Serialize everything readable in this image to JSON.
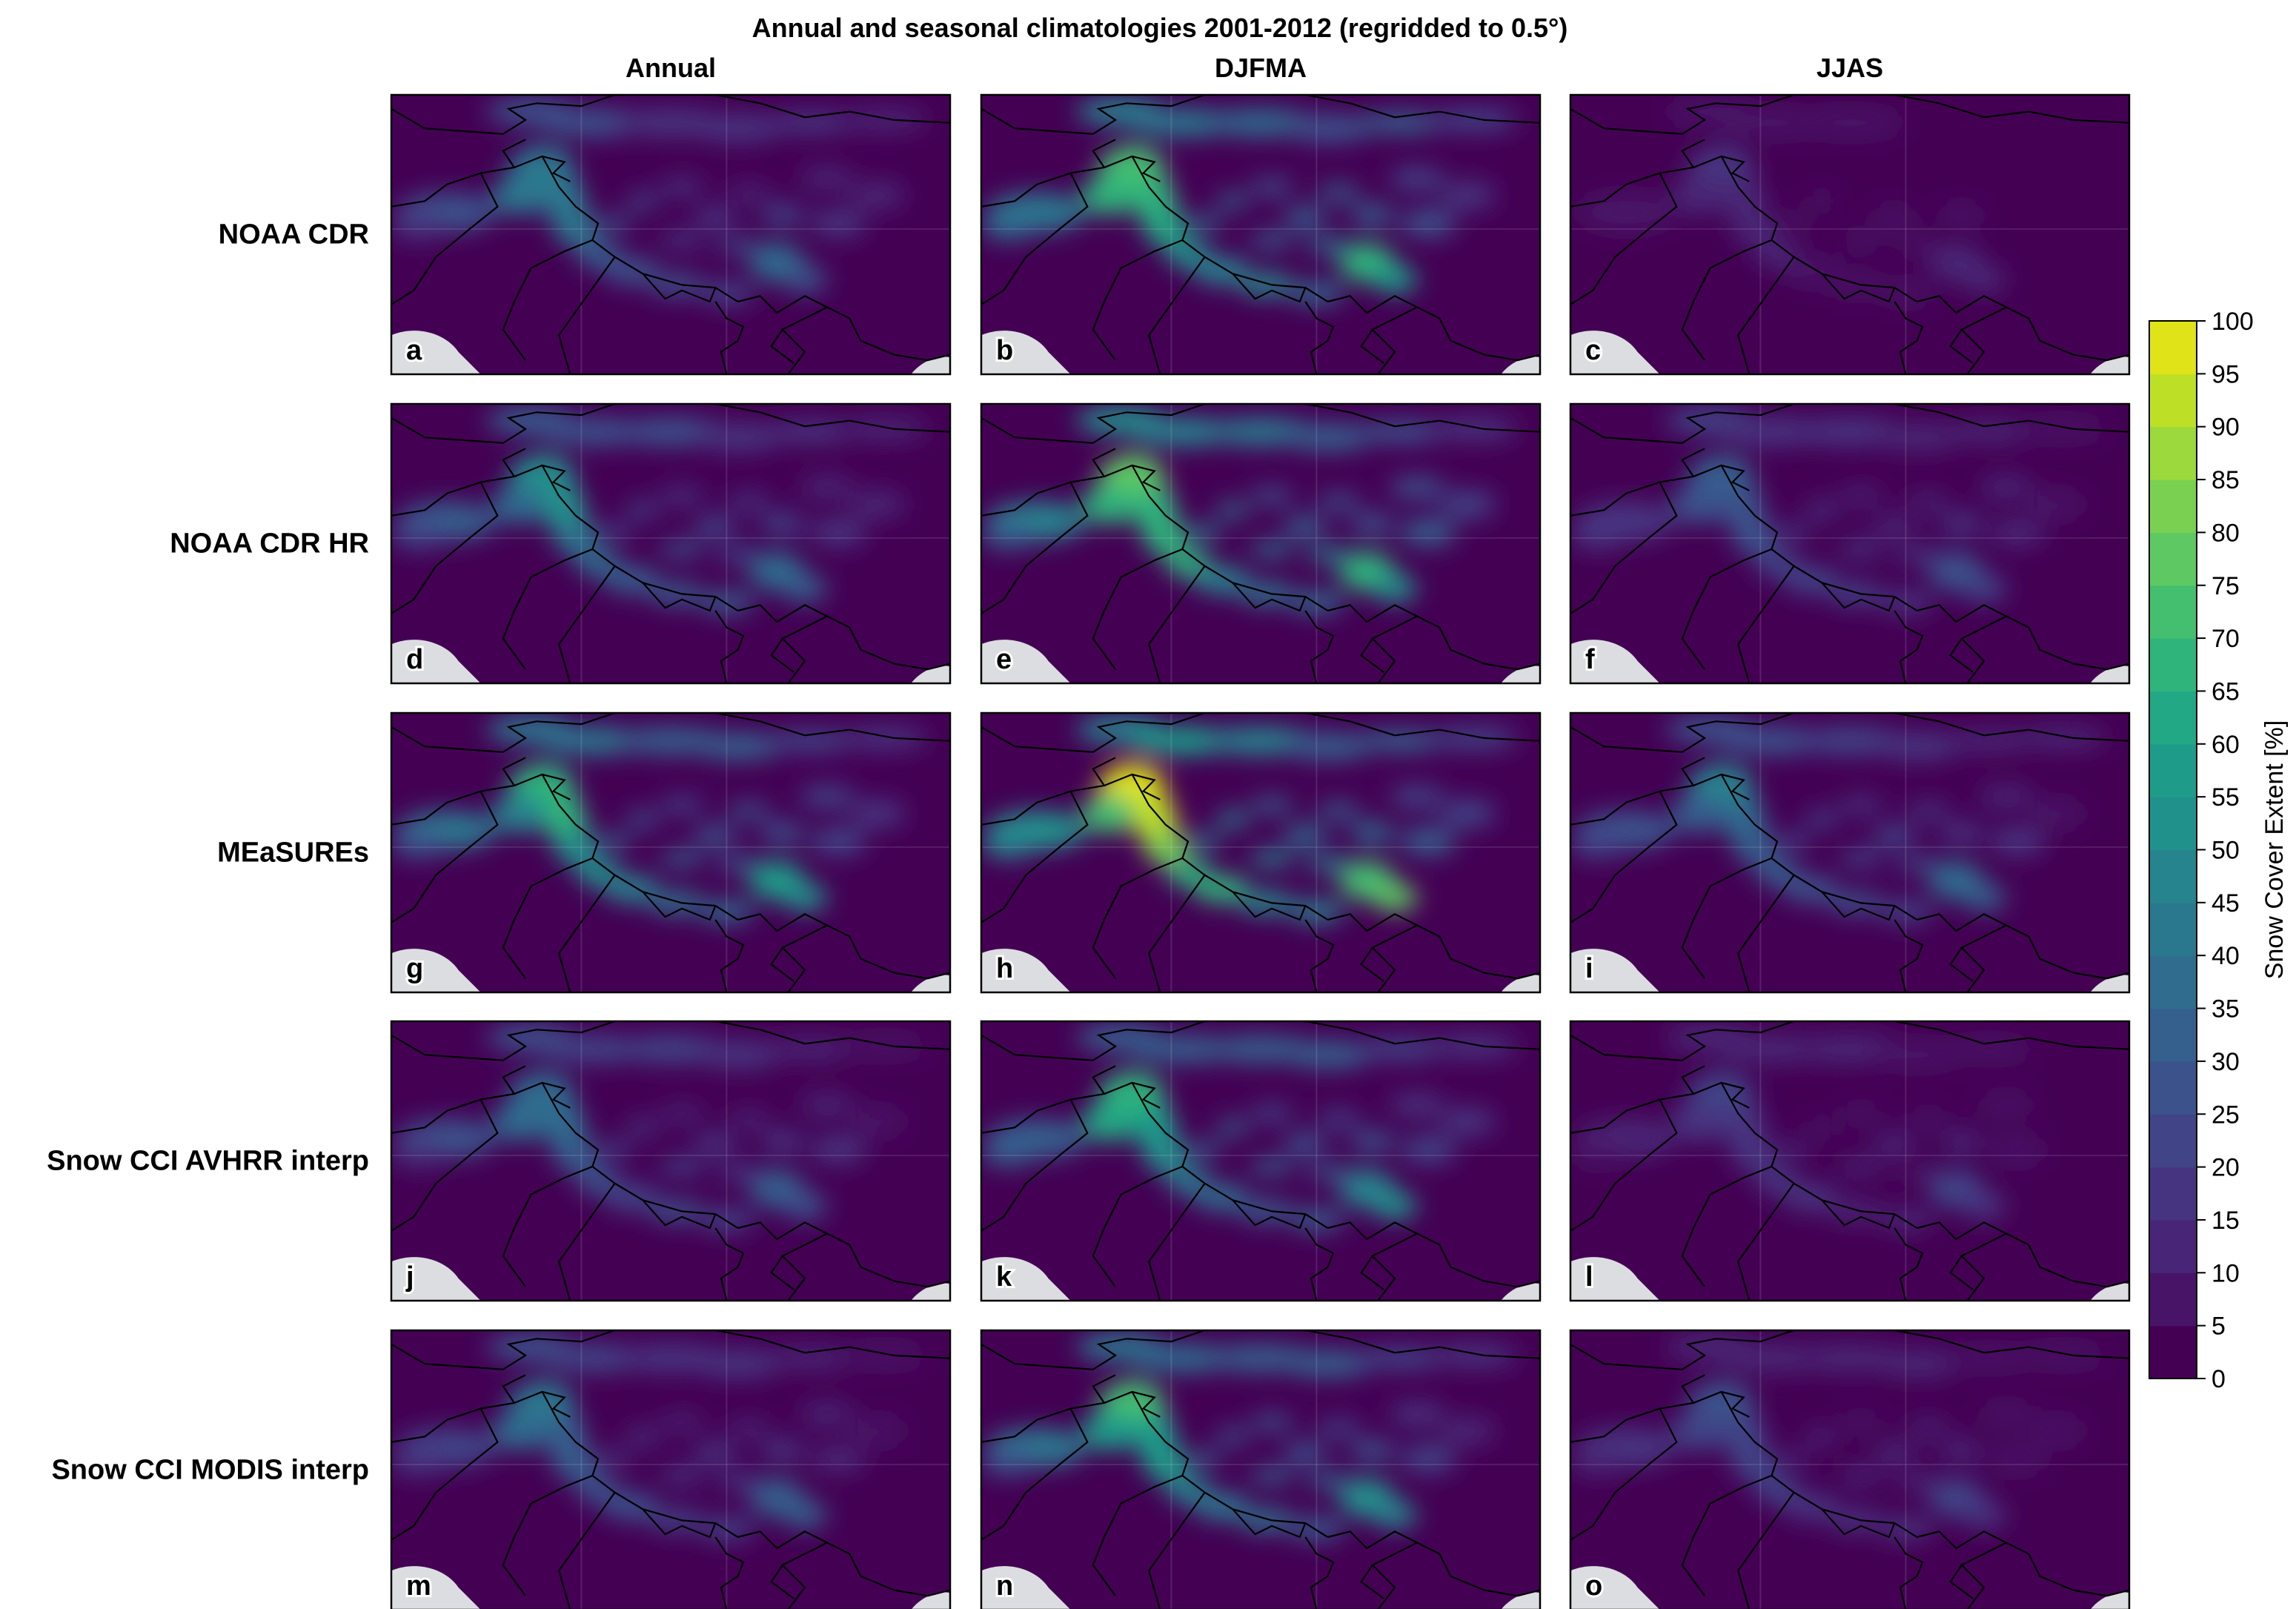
{
  "figure": {
    "title": "Annual and seasonal climatologies 2001-2012 (regridded to 0.5°)",
    "columns": [
      "Annual",
      "DJFMA",
      "JJAS"
    ],
    "rows": [
      {
        "label": "NOAA CDR",
        "panels": [
          "a",
          "b",
          "c"
        ]
      },
      {
        "label": "NOAA CDR HR",
        "panels": [
          "d",
          "e",
          "f"
        ]
      },
      {
        "label": "MEaSUREs",
        "panels": [
          "g",
          "h",
          "i"
        ]
      },
      {
        "label": "Snow CCI AVHRR interp",
        "panels": [
          "j",
          "k",
          "l"
        ]
      },
      {
        "label": "Snow CCI MODIS interp",
        "panels": [
          "m",
          "n",
          "o"
        ]
      }
    ],
    "panel_intensity": [
      [
        0.55,
        0.95,
        0.18
      ],
      [
        0.62,
        1.0,
        0.42
      ],
      [
        0.8,
        1.15,
        0.55
      ],
      [
        0.48,
        0.78,
        0.28
      ],
      [
        0.5,
        0.8,
        0.32
      ]
    ]
  },
  "colorbar": {
    "label": "Snow Cover Extent [%]",
    "ticks": [
      "0",
      "5",
      "10",
      "15",
      "20",
      "25",
      "30",
      "35",
      "40",
      "45",
      "50",
      "55",
      "60",
      "65",
      "70",
      "75",
      "80",
      "85",
      "90",
      "95",
      "100"
    ],
    "colormap": "viridis",
    "levels": 20,
    "colors": [
      "#440154",
      "#481467",
      "#482576",
      "#463480",
      "#414487",
      "#3b528b",
      "#355f8d",
      "#2f6c8e",
      "#2a788e",
      "#25848e",
      "#21918c",
      "#1e9c89",
      "#22a884",
      "#2fb47c",
      "#44bf70",
      "#5ec962",
      "#7ad151",
      "#9bd93c",
      "#bddf26",
      "#dfe318",
      "#fde725"
    ]
  },
  "map_colors": {
    "background": "#440154",
    "ocean": "#dcdde0",
    "borders": "#000000"
  }
}
